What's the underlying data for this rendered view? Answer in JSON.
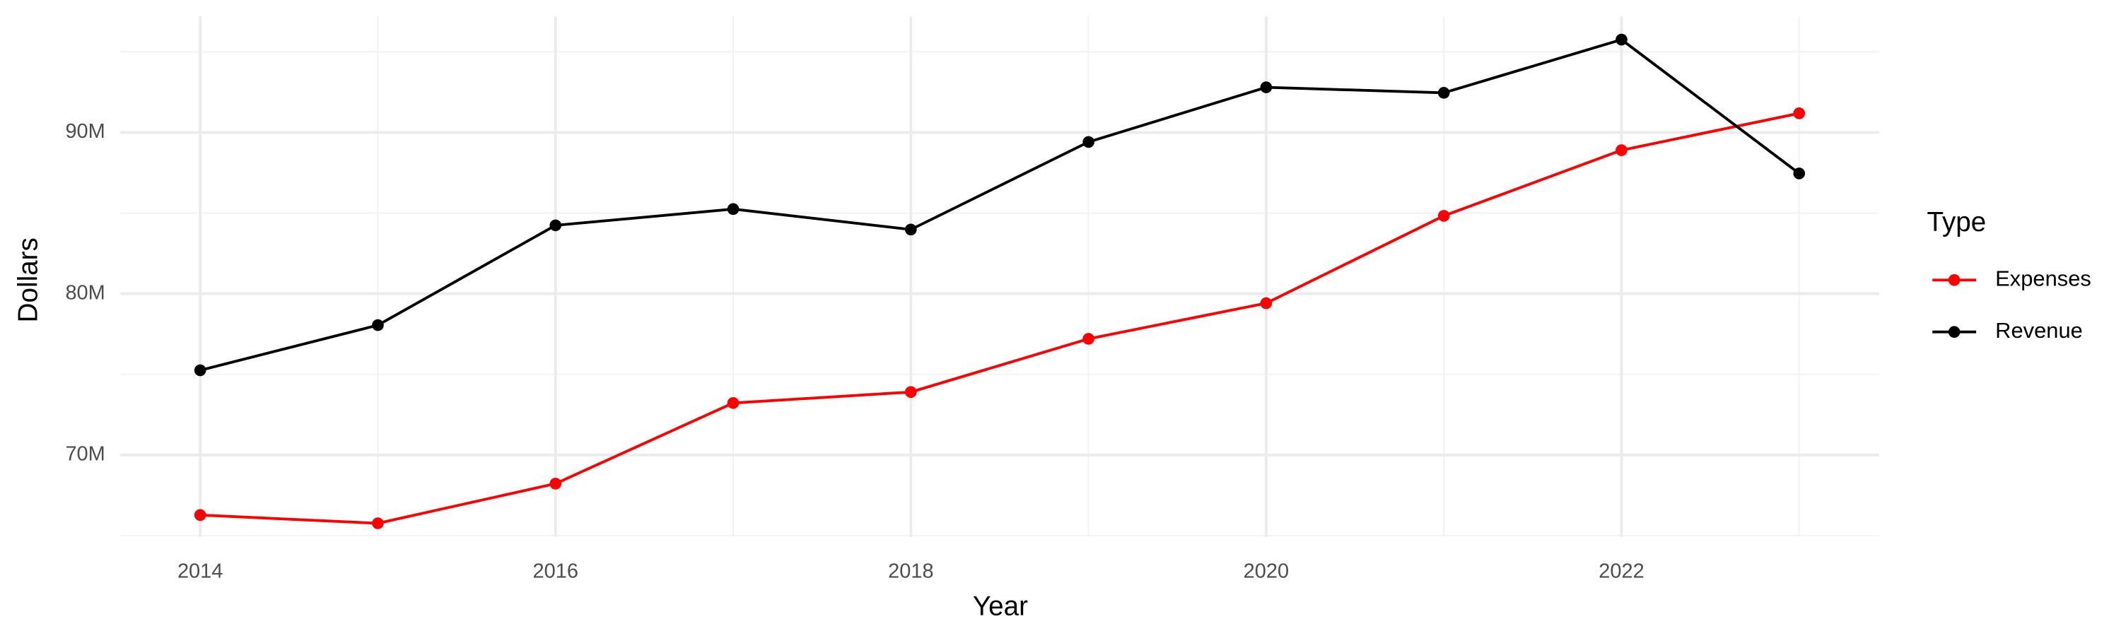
{
  "chart_data": {
    "type": "line",
    "x_label": "Year",
    "y_label": "Dollars",
    "legend_title": "Type",
    "legend_position": "right",
    "x": [
      2014,
      2015,
      2016,
      2017,
      2018,
      2019,
      2020,
      2021,
      2022,
      2023
    ],
    "series": [
      {
        "name": "Expenses",
        "color": "#ff0000",
        "values": [
          66270000,
          65760000,
          68220000,
          73220000,
          73900000,
          77200000,
          79410000,
          84830000,
          88900000,
          91190000
        ]
      },
      {
        "name": "Revenue",
        "color": "#000000",
        "values": [
          75250000,
          78050000,
          84240000,
          85250000,
          83980000,
          89410000,
          92800000,
          92460000,
          95760000,
          87460000
        ]
      }
    ],
    "xlim": [
      2013.55,
      2023.45
    ],
    "xticks": [
      2014,
      2016,
      2018,
      2020,
      2022
    ],
    "x_minor_gridlines": [
      2015,
      2017,
      2019,
      2021,
      2023
    ],
    "ylim": [
      64920000,
      97200000
    ],
    "yticks": [
      {
        "value": 70000000,
        "label": "70M"
      },
      {
        "value": 80000000,
        "label": "80M"
      },
      {
        "value": 90000000,
        "label": "90M"
      }
    ],
    "y_minor_gridlines": [
      65000000,
      75000000,
      85000000,
      95000000
    ],
    "grid": true
  }
}
